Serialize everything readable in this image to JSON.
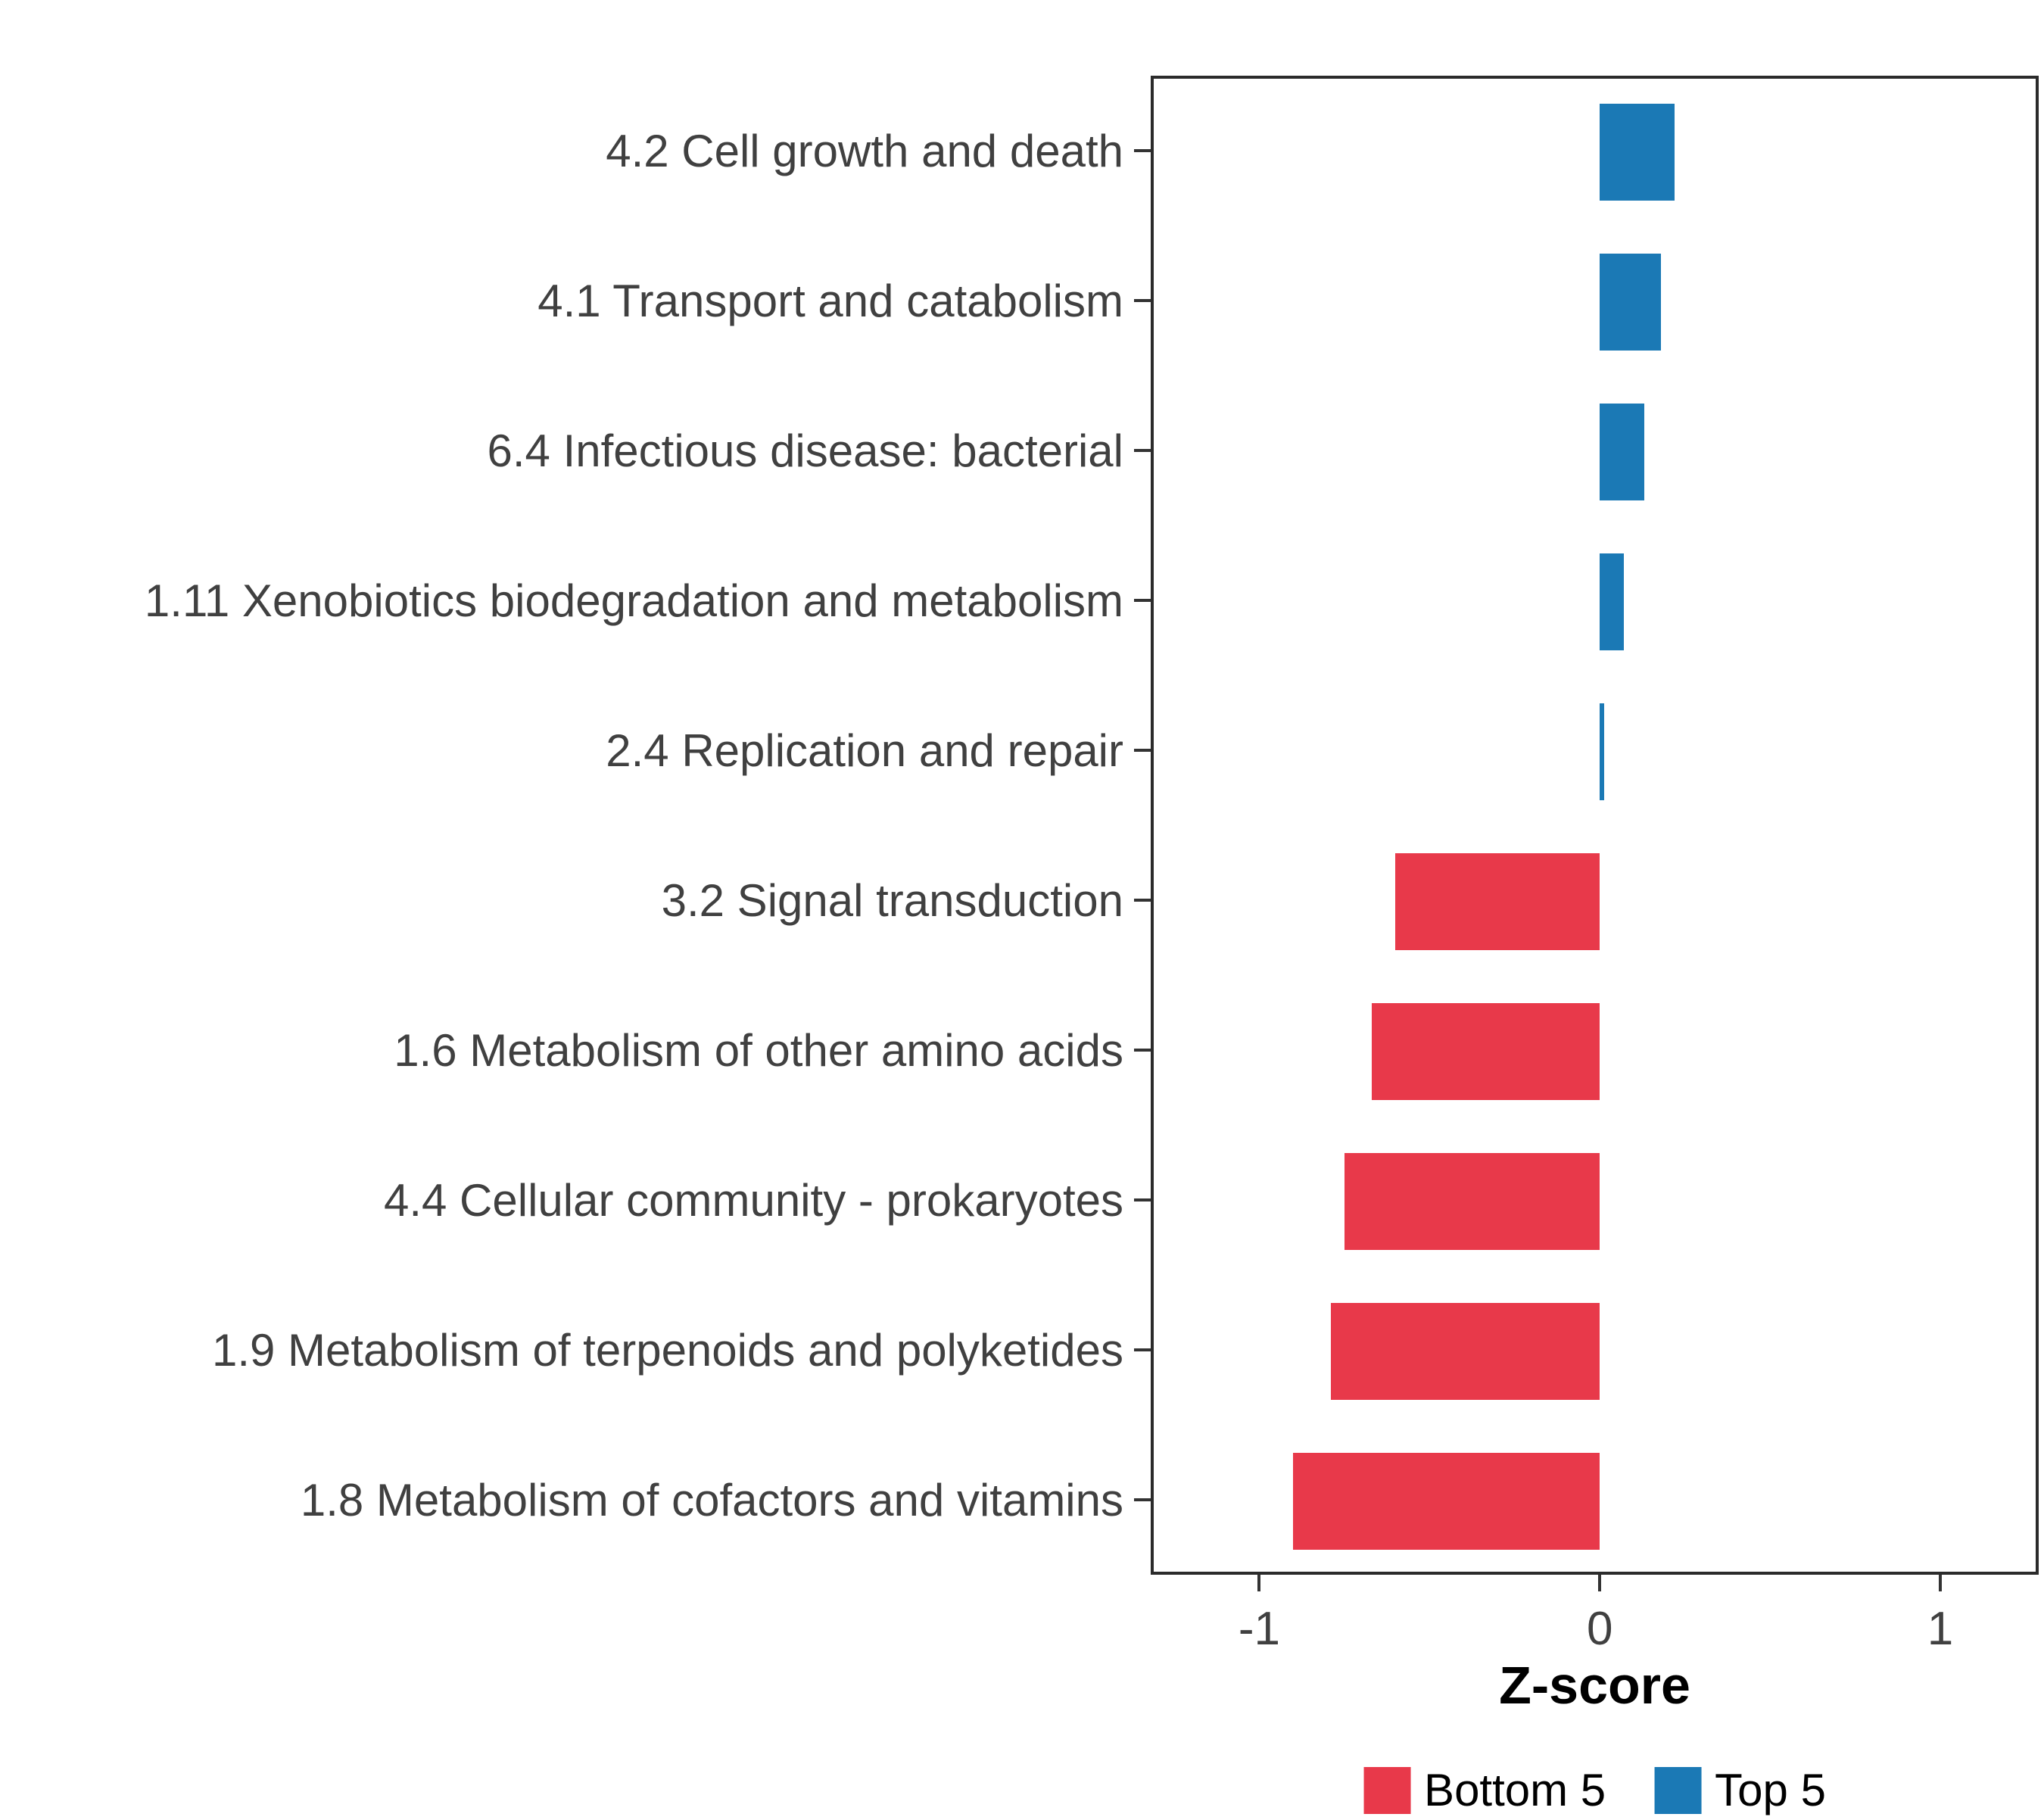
{
  "chart_data": {
    "type": "bar",
    "orientation": "horizontal",
    "title": "",
    "xlabel": "Z-score",
    "ylabel": "",
    "xlim": [
      -1.31,
      1.28
    ],
    "xticks": [
      -1,
      0,
      1
    ],
    "xtick_labels": [
      "-1",
      "0",
      "1"
    ],
    "grid": false,
    "legend_position": "bottom",
    "categories": [
      "4.2 Cell growth and death",
      "4.1 Transport and catabolism",
      "6.4 Infectious disease: bacterial",
      "1.11 Xenobiotics biodegradation and metabolism",
      "2.4 Replication and repair",
      "3.2 Signal transduction",
      "1.6 Metabolism of other amino acids",
      "4.4 Cellular community - prokaryotes",
      "1.9 Metabolism of terpenoids and polyketides",
      "1.8 Metabolism of cofactors and vitamins"
    ],
    "values": [
      0.22,
      0.18,
      0.13,
      0.07,
      0.012,
      -0.6,
      -0.67,
      -0.75,
      -0.79,
      -0.9
    ],
    "groups": [
      "Top 5",
      "Top 5",
      "Top 5",
      "Top 5",
      "Top 5",
      "Bottom 5",
      "Bottom 5",
      "Bottom 5",
      "Bottom 5",
      "Bottom 5"
    ],
    "group_colors": {
      "Top 5": "#1B79B5",
      "Bottom 5": "#E8394A"
    },
    "legend": [
      {
        "label": "Bottom 5",
        "color": "#E8394A"
      },
      {
        "label": "Top 5",
        "color": "#1B79B5"
      }
    ]
  }
}
